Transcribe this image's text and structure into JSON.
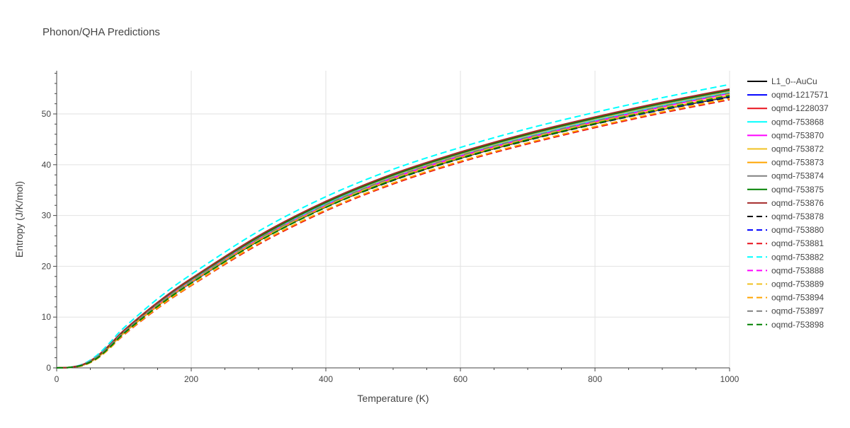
{
  "chart_data": {
    "type": "line",
    "title": "Phonon/QHA Predictions",
    "xlabel": "Temperature (K)",
    "ylabel": "Entropy (J/K/mol)",
    "xlim": [
      0,
      1000
    ],
    "ylim": [
      0,
      58.5
    ],
    "xticks": [
      0,
      200,
      400,
      600,
      800,
      1000
    ],
    "yticks": [
      0,
      10,
      20,
      30,
      40,
      50
    ],
    "grid": true,
    "legend_position": "right",
    "x": [
      0,
      20,
      40,
      60,
      80,
      100,
      150,
      200,
      300,
      400,
      500,
      600,
      700,
      800,
      900,
      1000
    ],
    "series": [
      {
        "name": "L1_0--AuCu",
        "color": "#000000",
        "dash": "solid",
        "values": [
          0,
          0.1,
          0.6,
          2.0,
          4.3,
          6.9,
          12.2,
          16.8,
          25.0,
          31.7,
          37.0,
          41.3,
          44.9,
          48.1,
          50.9,
          53.4
        ]
      },
      {
        "name": "oqmd-1217571",
        "color": "#0000ff",
        "dash": "solid",
        "values": [
          0,
          0.1,
          0.6,
          2.0,
          4.3,
          6.9,
          12.2,
          16.8,
          25.1,
          31.8,
          37.1,
          41.4,
          45.0,
          48.2,
          51.0,
          53.5
        ]
      },
      {
        "name": "oqmd-1228037",
        "color": "#e8101b",
        "dash": "solid",
        "values": [
          0,
          0.1,
          0.7,
          2.2,
          4.6,
          7.2,
          12.7,
          17.4,
          25.7,
          32.5,
          37.8,
          42.2,
          45.8,
          49.0,
          51.9,
          54.5
        ]
      },
      {
        "name": "oqmd-753868",
        "color": "#00ffff",
        "dash": "solid",
        "values": [
          0,
          0.1,
          0.7,
          2.2,
          4.5,
          7.1,
          12.5,
          17.2,
          25.5,
          32.2,
          37.6,
          41.9,
          45.5,
          48.7,
          51.6,
          54.2
        ]
      },
      {
        "name": "oqmd-753870",
        "color": "#ff00ff",
        "dash": "solid",
        "values": [
          0,
          0.1,
          0.7,
          2.1,
          4.4,
          7.0,
          12.4,
          17.0,
          25.3,
          32.0,
          37.4,
          41.7,
          45.3,
          48.5,
          51.4,
          54.0
        ]
      },
      {
        "name": "oqmd-753872",
        "color": "#f0c020",
        "dash": "solid",
        "values": [
          0,
          0.1,
          0.7,
          2.2,
          4.6,
          7.2,
          12.7,
          17.4,
          25.7,
          32.5,
          37.8,
          42.1,
          45.8,
          49.0,
          51.9,
          54.5
        ]
      },
      {
        "name": "oqmd-753873",
        "color": "#ffa500",
        "dash": "solid",
        "values": [
          0,
          0.1,
          0.6,
          2.0,
          4.3,
          6.9,
          12.2,
          16.9,
          25.1,
          31.8,
          37.1,
          41.4,
          45.0,
          48.2,
          51.0,
          53.6
        ]
      },
      {
        "name": "oqmd-753874",
        "color": "#808080",
        "dash": "solid",
        "values": [
          0,
          0.1,
          0.7,
          2.2,
          4.6,
          7.2,
          12.7,
          17.4,
          25.7,
          32.5,
          37.9,
          42.2,
          45.9,
          49.1,
          52.0,
          54.6
        ]
      },
      {
        "name": "oqmd-753875",
        "color": "#008000",
        "dash": "solid",
        "values": [
          0,
          0.1,
          0.7,
          2.2,
          4.6,
          7.3,
          12.8,
          17.5,
          25.8,
          32.6,
          38.0,
          42.3,
          46.0,
          49.2,
          52.1,
          54.7
        ]
      },
      {
        "name": "oqmd-753876",
        "color": "#a52a2a",
        "dash": "solid",
        "values": [
          0,
          0.1,
          0.7,
          2.3,
          4.7,
          7.4,
          12.9,
          17.6,
          26.0,
          32.8,
          38.2,
          42.5,
          46.2,
          49.4,
          52.3,
          54.9
        ]
      },
      {
        "name": "oqmd-753878",
        "color": "#000000",
        "dash": "dash",
        "values": [
          0,
          0.1,
          0.6,
          2.0,
          4.2,
          6.8,
          12.1,
          16.7,
          24.9,
          31.6,
          36.9,
          41.2,
          44.8,
          48.0,
          50.8,
          53.3
        ]
      },
      {
        "name": "oqmd-753880",
        "color": "#0000ff",
        "dash": "dash",
        "values": [
          0,
          0.1,
          0.6,
          2.0,
          4.3,
          6.9,
          12.2,
          16.8,
          25.0,
          31.7,
          37.0,
          41.3,
          44.9,
          48.1,
          50.9,
          53.5
        ]
      },
      {
        "name": "oqmd-753881",
        "color": "#e8101b",
        "dash": "dash",
        "values": [
          0,
          0.1,
          0.5,
          1.8,
          4.0,
          6.5,
          11.7,
          16.2,
          24.3,
          30.9,
          36.2,
          40.5,
          44.1,
          47.3,
          50.2,
          52.8
        ]
      },
      {
        "name": "oqmd-753882",
        "color": "#00ffff",
        "dash": "dash",
        "values": [
          0,
          0.1,
          0.8,
          2.5,
          5.1,
          7.9,
          13.6,
          18.4,
          26.9,
          33.7,
          39.1,
          43.4,
          47.1,
          50.3,
          53.2,
          55.8
        ]
      },
      {
        "name": "oqmd-753888",
        "color": "#ff00ff",
        "dash": "dash",
        "values": [
          0,
          0.1,
          0.7,
          2.1,
          4.4,
          7.0,
          12.4,
          17.0,
          25.3,
          32.0,
          37.4,
          41.7,
          45.3,
          48.5,
          51.4,
          54.0
        ]
      },
      {
        "name": "oqmd-753889",
        "color": "#f0c020",
        "dash": "dash",
        "values": [
          0,
          0.1,
          0.6,
          2.0,
          4.3,
          6.9,
          12.3,
          16.9,
          25.2,
          31.9,
          37.2,
          41.5,
          45.1,
          48.3,
          51.2,
          53.8
        ]
      },
      {
        "name": "oqmd-753894",
        "color": "#ffa500",
        "dash": "dash",
        "values": [
          0,
          0.1,
          0.5,
          1.8,
          4.0,
          6.6,
          11.8,
          16.3,
          24.5,
          31.1,
          36.4,
          40.7,
          44.3,
          47.5,
          50.4,
          53.0
        ]
      },
      {
        "name": "oqmd-753897",
        "color": "#808080",
        "dash": "dash",
        "values": [
          0,
          0.1,
          0.7,
          2.2,
          4.5,
          7.1,
          12.5,
          17.1,
          25.4,
          32.1,
          37.5,
          41.8,
          45.4,
          48.6,
          51.5,
          54.1
        ]
      },
      {
        "name": "oqmd-753898",
        "color": "#008000",
        "dash": "dash",
        "values": [
          0,
          0.1,
          0.6,
          1.9,
          4.2,
          6.8,
          12.1,
          16.7,
          24.9,
          31.6,
          37.0,
          41.3,
          44.9,
          48.1,
          51.0,
          53.6
        ]
      }
    ]
  }
}
